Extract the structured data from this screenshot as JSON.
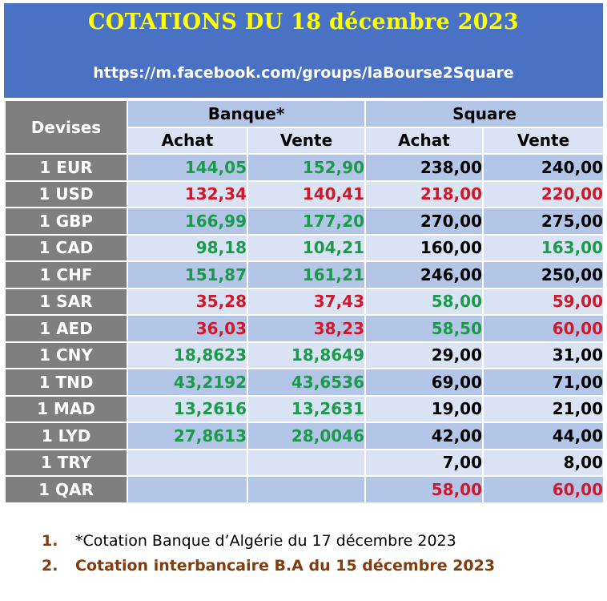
{
  "header": {
    "title": "COTATIONS DU 18 décembre 2023",
    "url": "https://m.facebook.com/groups/laBourse2Square"
  },
  "table": {
    "devises_label": "Devises",
    "banque_label": "Banque*",
    "square_label": "Square",
    "achat_label": "Achat",
    "vente_label": "Vente",
    "rows": [
      {
        "currency": "1 EUR",
        "banque_achat": "144,05",
        "banque_vente": "152,90",
        "square_achat": "238,00",
        "square_vente": "240,00"
      },
      {
        "currency": "1 USD",
        "banque_achat": "132,34",
        "banque_vente": "140,41",
        "square_achat": "218,00",
        "square_vente": "220,00"
      },
      {
        "currency": "1 GBP",
        "banque_achat": "166,99",
        "banque_vente": "177,20",
        "square_achat": "270,00",
        "square_vente": "275,00"
      },
      {
        "currency": "1 CAD",
        "banque_achat": "98,18",
        "banque_vente": "104,21",
        "square_achat": "160,00",
        "square_vente": "163,00"
      },
      {
        "currency": "1 CHF",
        "banque_achat": "151,87",
        "banque_vente": "161,21",
        "square_achat": "246,00",
        "square_vente": "250,00"
      },
      {
        "currency": "1 SAR",
        "banque_achat": "35,28",
        "banque_vente": "37,43",
        "square_achat": "58,00",
        "square_vente": "59,00"
      },
      {
        "currency": "1 AED",
        "banque_achat": "36,03",
        "banque_vente": "38,23",
        "square_achat": "58,50",
        "square_vente": "60,00"
      },
      {
        "currency": "1 CNY",
        "banque_achat": "18,8623",
        "banque_vente": "18,8649",
        "square_achat": "29,00",
        "square_vente": "31,00"
      },
      {
        "currency": "1 TND",
        "banque_achat": "43,2192",
        "banque_vente": "43,6536",
        "square_achat": "69,00",
        "square_vente": "71,00"
      },
      {
        "currency": "1 MAD",
        "banque_achat": "13,2616",
        "banque_vente": "13,2631",
        "square_achat": "19,00",
        "square_vente": "21,00"
      },
      {
        "currency": "1 LYD",
        "banque_achat": "27,8613",
        "banque_vente": "28,0046",
        "square_achat": "42,00",
        "square_vente": "44,00"
      },
      {
        "currency": "1 TRY",
        "banque_achat": "",
        "banque_vente": "",
        "square_achat": "7,00",
        "square_vente": "8,00"
      },
      {
        "currency": "1 QAR",
        "banque_achat": "",
        "banque_vente": "",
        "square_achat": "58,00",
        "square_vente": "60,00"
      }
    ]
  },
  "footnotes": [
    {
      "num": "1.",
      "text": "*Cotation Banque d’Algérie du 17 décembre 2023"
    },
    {
      "num": "2.",
      "text": "Cotation interbancaire B.A du 15 décembre 2023"
    }
  ],
  "colors": {
    "header_bg": "#4a72c4",
    "title": "#ffff00",
    "currency_col_bg": "#7f7f7f",
    "row_dark": "#b4c6e7",
    "row_light": "#dae3f3",
    "green": "#1a9a4a",
    "red": "#d0182a",
    "footnote_brown": "#843c0c"
  }
}
